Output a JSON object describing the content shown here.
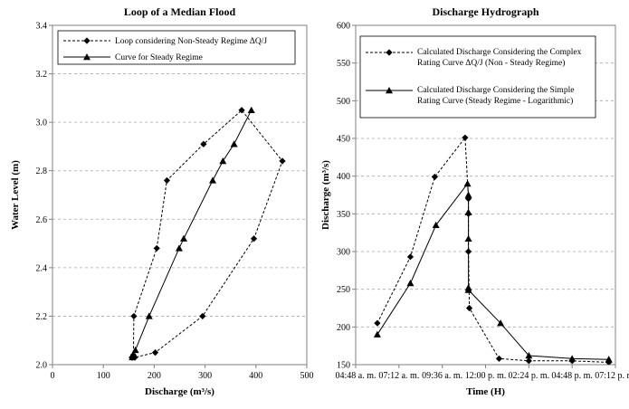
{
  "chart_data": [
    {
      "type": "scatter",
      "title": "Loop of a Median Flood",
      "xlabel": "Discharge (m³/s)",
      "ylabel": "Water Level (m)",
      "xlim": [
        0,
        500
      ],
      "ylim": [
        2.0,
        3.4
      ],
      "x_ticks": [
        "0",
        "100",
        "200",
        "300",
        "400",
        "500"
      ],
      "y_ticks": [
        "2.0",
        "2.2",
        "2.4",
        "2.6",
        "2.8",
        "3.0",
        "3.2",
        "3.4"
      ],
      "grid": "horizontal dashed",
      "legend_position": "top-left",
      "series": [
        {
          "name": "Loop considering Non-Steady Regime ΔQ/J",
          "marker": "diamond",
          "line": "dashed",
          "color": "#000000",
          "x": [
            157,
            159,
            160,
            205,
            225,
            297,
            372,
            452,
            396,
            295,
            202,
            162,
            156
          ],
          "y": [
            2.03,
            2.04,
            2.2,
            2.48,
            2.76,
            2.91,
            3.05,
            2.84,
            2.52,
            2.2,
            2.05,
            2.03,
            2.03
          ]
        },
        {
          "name": "Curve for Steady Regime",
          "marker": "triangle",
          "line": "solid",
          "color": "#000000",
          "x": [
            157,
            163,
            190,
            249,
            258,
            315,
            335,
            357,
            391
          ],
          "y": [
            2.03,
            2.06,
            2.2,
            2.48,
            2.52,
            2.76,
            2.84,
            2.91,
            3.05
          ]
        }
      ]
    },
    {
      "type": "line",
      "title": "Discharge Hydrograph",
      "xlabel": "Time (H)",
      "ylabel": "Discharge (m³/s)",
      "xlim": [
        "04:48 a. m.",
        "07:12 p. m."
      ],
      "ylim": [
        150,
        600
      ],
      "x_ticks": [
        "04:48 a. m.",
        "07:12 a. m.",
        "09:36 a. m.",
        "12:00 p. m.",
        "02:24 p. m.",
        "04:48 p. m.",
        "07:12 p. m."
      ],
      "y_ticks": [
        "150",
        "200",
        "250",
        "300",
        "350",
        "400",
        "450",
        "500",
        "550",
        "600"
      ],
      "grid": "horizontal dashed",
      "legend_position": "top-left",
      "series": [
        {
          "name": "Calculated Discharge Considering the Complex Rating Curve ΔQ/J (Non - Steady Regime)",
          "marker": "diamond",
          "line": "dashed",
          "color": "#000000",
          "x": [
            "06:00 a. m.",
            "07:50 a. m.",
            "09:11 a. m.",
            "10:52 a. m.",
            "11:03 a. m.",
            "11:03 a. m.",
            "11:03 a. m.",
            "11:06 a. m.",
            "12:45 p. m.",
            "02:24 p. m.",
            "04:48 p. m.",
            "06:50 p. m."
          ],
          "y": [
            205,
            293,
            399,
            451,
            370,
            350,
            300,
            225,
            158,
            155,
            155,
            153
          ]
        },
        {
          "name": "Calculated Discharge Considering the Simple Rating Curve (Steady Regime - Logarithmic)",
          "marker": "triangle",
          "line": "solid",
          "color": "#000000",
          "x": [
            "06:00 a. m.",
            "07:50 a. m.",
            "09:15 a. m.",
            "11:00 a. m.",
            "11:03 a. m.",
            "11:03 a. m.",
            "11:03 a. m.",
            "11:03 a. m.",
            "11:03 a. m.",
            "12:50 p. m.",
            "02:24 p. m.",
            "04:48 p. m.",
            "06:50 p. m."
          ],
          "y": [
            190,
            258,
            335,
            390,
            375,
            352,
            317,
            252,
            249,
            205,
            162,
            158,
            157
          ]
        }
      ]
    }
  ]
}
